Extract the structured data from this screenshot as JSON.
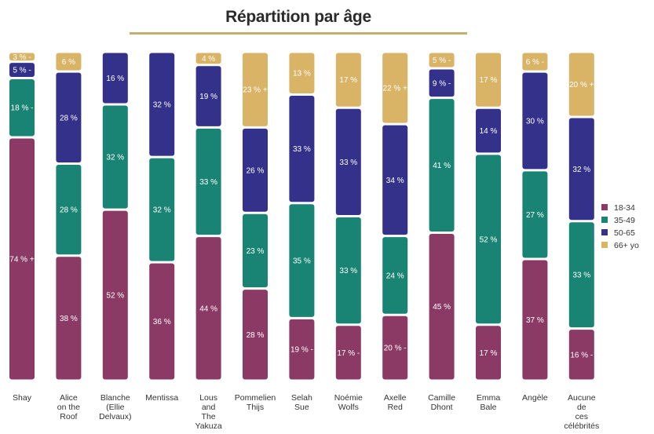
{
  "chart_data": {
    "type": "bar",
    "stacked": true,
    "title": "Répartition par âge",
    "categories": [
      [
        "Shay"
      ],
      [
        "Alice",
        "on the",
        "Roof"
      ],
      [
        "Blanche",
        "(Ellie",
        "Delvaux)"
      ],
      [
        "Mentissa"
      ],
      [
        "Lous",
        "and",
        "The",
        "Yakuza"
      ],
      [
        "Pommelien",
        "Thijs"
      ],
      [
        "Selah",
        "Sue"
      ],
      [
        "Noémie",
        "Wolfs"
      ],
      [
        "Axelle",
        "Red"
      ],
      [
        "Camille",
        "Dhont"
      ],
      [
        "Emma",
        "Bale"
      ],
      [
        "Angèle"
      ],
      [
        "Aucune",
        "de",
        "ces",
        "célébrités"
      ]
    ],
    "series": [
      {
        "name": "18-34",
        "color": "#8b3a66",
        "values": [
          74,
          38,
          52,
          36,
          44,
          28,
          19,
          17,
          20,
          45,
          17,
          37,
          16
        ],
        "labels": [
          "74 % +",
          "38 %",
          "52 %",
          "36 %",
          "44 %",
          "28 %",
          "19 % -",
          "17 % -",
          "20 % -",
          "45 %",
          "17 %",
          "37 %",
          "16 % -"
        ]
      },
      {
        "name": "35-49",
        "color": "#1a8474",
        "values": [
          18,
          28,
          32,
          32,
          33,
          23,
          35,
          33,
          24,
          41,
          52,
          27,
          33
        ],
        "labels": [
          "18 % -",
          "28 %",
          "32 %",
          "32 %",
          "33 %",
          "23 %",
          "35 %",
          "33 %",
          "24 %",
          "41 %",
          "52 %",
          "27 %",
          "33 %"
        ]
      },
      {
        "name": "50-65",
        "color": "#34318a",
        "values": [
          5,
          28,
          16,
          32,
          19,
          26,
          33,
          33,
          34,
          9,
          14,
          30,
          32
        ],
        "labels": [
          "5 % -",
          "28 %",
          "16 %",
          "32 %",
          "19 %",
          "26 %",
          "33 %",
          "33 %",
          "34 %",
          "9 % -",
          "14 %",
          "30 %",
          "32 %"
        ]
      },
      {
        "name": "66+ yo",
        "color": "#d9b366",
        "values": [
          3,
          6,
          0,
          0,
          4,
          23,
          13,
          17,
          22,
          5,
          17,
          6,
          20
        ],
        "labels": [
          "3 % -",
          "6 %",
          "",
          "",
          "4 %",
          "23 % +",
          "13 %",
          "17 %",
          "22 % +",
          "5 % -",
          "17 %",
          "6 % -",
          "20 % +"
        ]
      }
    ],
    "ylim": [
      0,
      100
    ],
    "grid": false,
    "legend": "right"
  }
}
